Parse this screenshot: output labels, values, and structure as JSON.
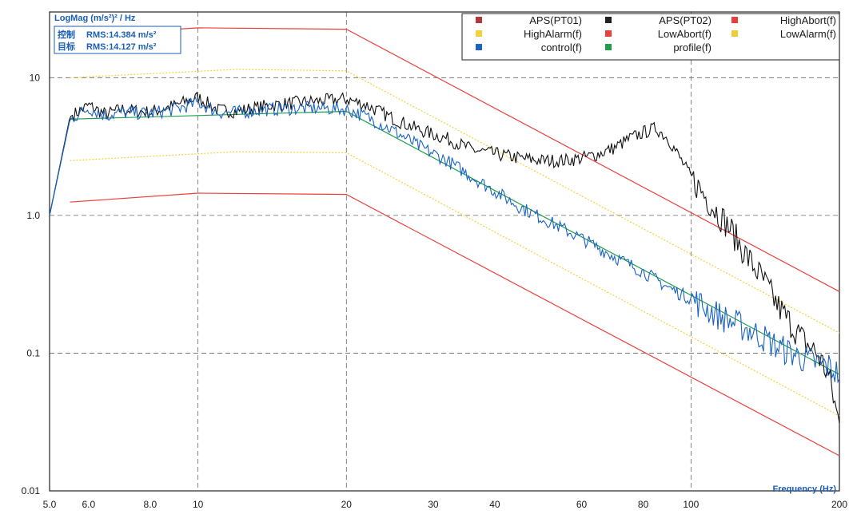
{
  "chart_data": {
    "type": "line",
    "ylabel": "LogMag (m/s²)² / Hz",
    "xlabel": "Frequency (Hz)",
    "x_scale": "log",
    "y_scale": "log",
    "xlim": [
      5,
      200
    ],
    "ylim": [
      0.01,
      30
    ],
    "x_ticks": [
      "5.0",
      "6.0",
      "8.0",
      "10",
      "20",
      "30",
      "40",
      "60",
      "80",
      "100",
      "200"
    ],
    "y_ticks": [
      "0.01",
      "0.1",
      "1.0",
      "10"
    ],
    "rms": [
      {
        "label": "控制",
        "value": "RMS:14.384 m/s²"
      },
      {
        "label": "目标",
        "value": "RMS:14.127 m/s²"
      }
    ],
    "legend": [
      "APS(PT01)",
      "APS(PT02)",
      "HighAbort(f)",
      "HighAlarm(f)",
      "LowAbort(f)",
      "LowAlarm(f)",
      "control(f)",
      "profile(f)"
    ],
    "series": [
      {
        "name": "HighAbort(f)",
        "color": "#e8413c",
        "dash": false,
        "x": [
          5.5,
          10,
          20,
          200
        ],
        "y": [
          20,
          23,
          22.5,
          0.28
        ]
      },
      {
        "name": "HighAlarm(f)",
        "color": "#f2d23b",
        "dash": true,
        "x": [
          5.5,
          12,
          20,
          200
        ],
        "y": [
          10,
          11.5,
          11.2,
          0.14
        ]
      },
      {
        "name": "LowAlarm(f)",
        "color": "#f2d23b",
        "dash": true,
        "x": [
          5.5,
          12,
          20,
          200
        ],
        "y": [
          2.5,
          2.9,
          2.85,
          0.035
        ]
      },
      {
        "name": "LowAbort(f)",
        "color": "#e8413c",
        "dash": false,
        "x": [
          5.5,
          10,
          20,
          200
        ],
        "y": [
          1.25,
          1.45,
          1.42,
          0.018
        ]
      },
      {
        "name": "profile(f)",
        "color": "#1e9e4a",
        "dash": false,
        "x": [
          5,
          5.5,
          20,
          200
        ],
        "y": [
          1.0,
          5.0,
          5.7,
          0.07
        ]
      },
      {
        "name": "APS(PT02)",
        "color": "#111111",
        "dash": false,
        "x": [
          5,
          5.5,
          6,
          6.5,
          7,
          8,
          9,
          10,
          11,
          12,
          14,
          16,
          18,
          20,
          22,
          25,
          28,
          32,
          36,
          40,
          45,
          50,
          55,
          60,
          65,
          70,
          75,
          80,
          85,
          90,
          95,
          100,
          110,
          120,
          130,
          140,
          150,
          160,
          170,
          180,
          190,
          200
        ],
        "y": [
          1.0,
          5.2,
          6.3,
          5.4,
          5.9,
          5.6,
          6.3,
          7.2,
          5.8,
          5.7,
          6.3,
          6.6,
          6.8,
          7.0,
          6.3,
          5.0,
          4.2,
          3.6,
          3.0,
          2.8,
          2.6,
          2.5,
          2.5,
          2.6,
          2.8,
          3.1,
          3.6,
          4.0,
          4.3,
          3.6,
          2.6,
          1.9,
          1.2,
          0.8,
          0.5,
          0.34,
          0.22,
          0.16,
          0.12,
          0.1,
          0.07,
          0.03
        ]
      },
      {
        "name": "control(f)",
        "color": "#1a62c4",
        "dash": false,
        "x": [
          5,
          5.5,
          6,
          6.5,
          7,
          8,
          9,
          10,
          11,
          12,
          14,
          16,
          18,
          20,
          22,
          25,
          28,
          32,
          36,
          40,
          45,
          50,
          55,
          60,
          65,
          70,
          75,
          80,
          85,
          90,
          95,
          100,
          110,
          120,
          130,
          140,
          150,
          160,
          170,
          180,
          190,
          200
        ],
        "y": [
          1.0,
          5.0,
          6.0,
          5.3,
          5.6,
          5.5,
          5.9,
          6.6,
          5.6,
          5.6,
          5.9,
          6.0,
          6.0,
          5.9,
          5.2,
          4.1,
          3.2,
          2.5,
          1.9,
          1.5,
          1.15,
          0.95,
          0.8,
          0.68,
          0.58,
          0.5,
          0.44,
          0.39,
          0.34,
          0.3,
          0.27,
          0.25,
          0.2,
          0.17,
          0.15,
          0.13,
          0.11,
          0.1,
          0.09,
          0.085,
          0.08,
          0.07
        ]
      }
    ]
  }
}
